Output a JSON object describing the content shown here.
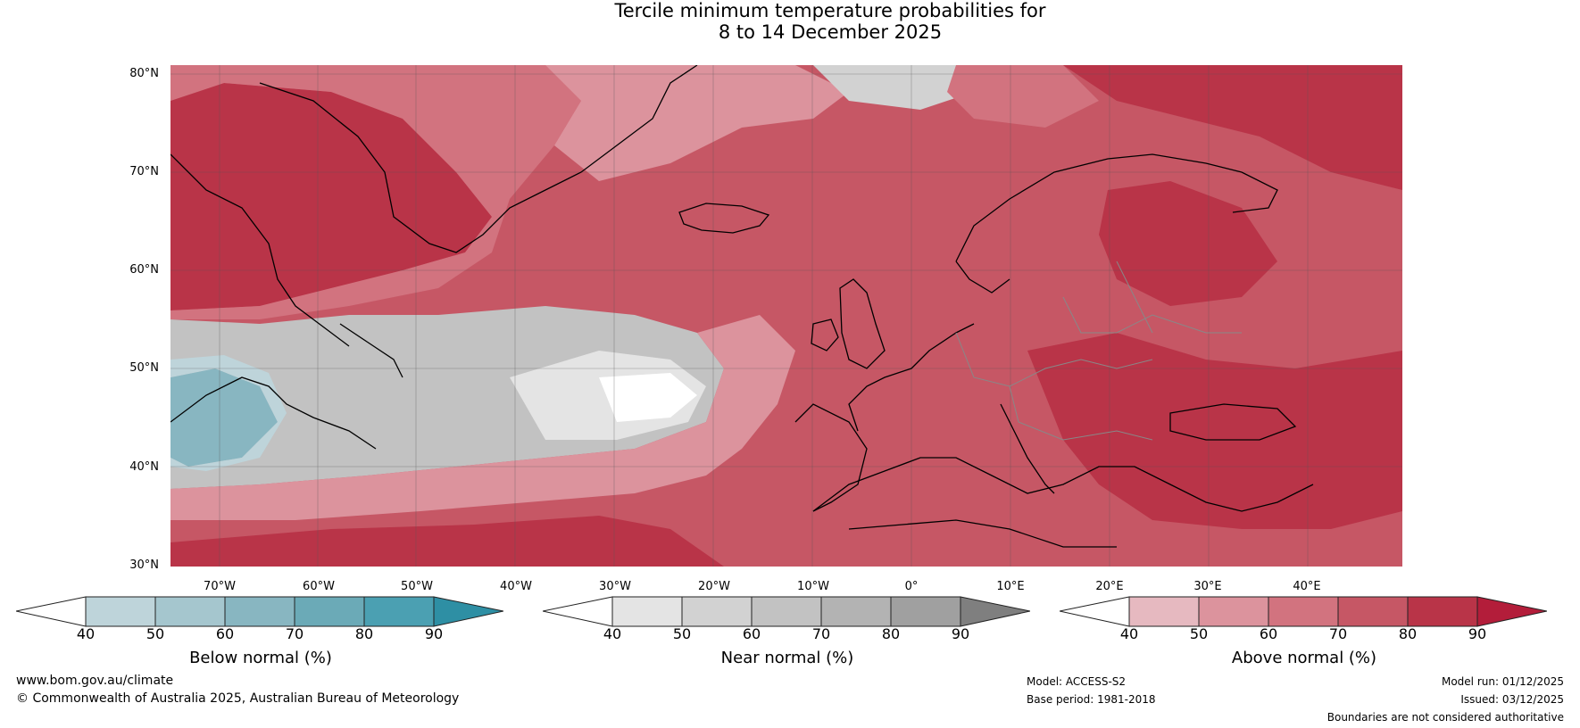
{
  "title": {
    "line1": "Tercile minimum temperature probabilities for",
    "line2": "8 to 14 December 2025"
  },
  "map": {
    "region": "North Atlantic and Europe",
    "lat_labels": [
      "80°N",
      "70°N",
      "60°N",
      "50°N",
      "40°N",
      "30°N"
    ],
    "lon_labels": [
      "70°W",
      "60°W",
      "50°W",
      "40°W",
      "30°W",
      "20°W",
      "10°W",
      "0°",
      "10°E",
      "20°E",
      "30°E",
      "40°E"
    ]
  },
  "legend": {
    "below": {
      "label": "Below normal (%)",
      "ticks": [
        "40",
        "50",
        "60",
        "70",
        "80",
        "90"
      ],
      "colors": [
        "#ffffff",
        "#bed4da",
        "#a5c6ce",
        "#88b6c1",
        "#6baab7",
        "#4ba0b2",
        "#2e8fa4"
      ]
    },
    "near": {
      "label": "Near normal (%)",
      "ticks": [
        "40",
        "50",
        "60",
        "70",
        "80",
        "90"
      ],
      "colors": [
        "#ffffff",
        "#e4e4e4",
        "#d2d2d2",
        "#c2c2c2",
        "#b3b3b3",
        "#a0a0a0",
        "#7f7f7f"
      ]
    },
    "above": {
      "label": "Above normal (%)",
      "ticks": [
        "40",
        "50",
        "60",
        "70",
        "80",
        "90"
      ],
      "colors": [
        "#ffffff",
        "#e6b9c0",
        "#dc939d",
        "#d2737f",
        "#c65765",
        "#b93448",
        "#b31d3a"
      ]
    }
  },
  "footer": {
    "url": "www.bom.gov.au/climate",
    "copyright": "© Commonwealth of Australia 2025, Australian Bureau of Meteorology",
    "model": "Model: ACCESS-S2",
    "base_period": "Base period: 1981-2018",
    "model_run": "Model run: 01/12/2025",
    "issued": "Issued: 03/12/2025",
    "disclaimer": "Boundaries are not considered authoritative"
  }
}
